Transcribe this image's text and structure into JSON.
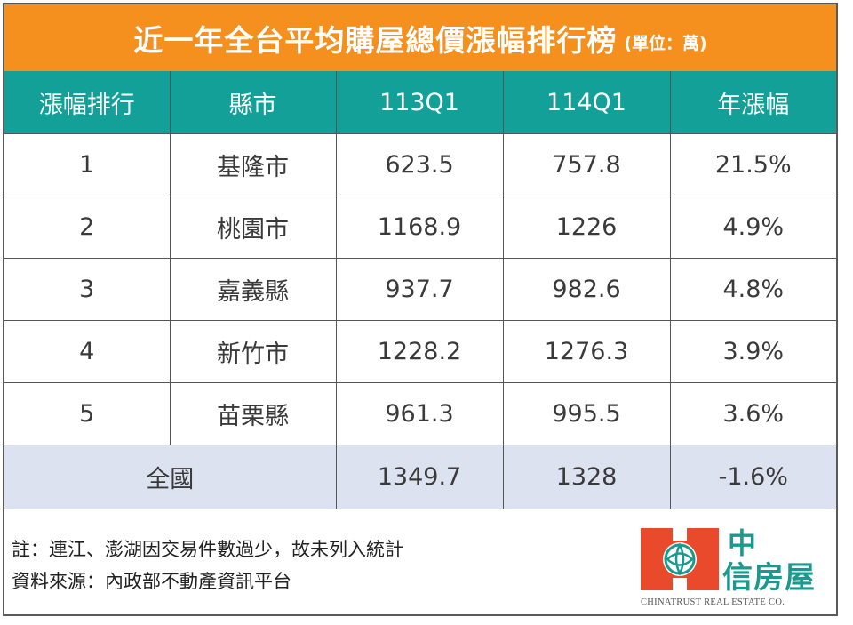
{
  "title": {
    "main": "近一年全台平均購屋總價漲幅排行榜",
    "unit": "(單位：萬)"
  },
  "table": {
    "headers": [
      "漲幅排行",
      "縣市",
      "113Q1",
      "114Q1",
      "年漲幅"
    ],
    "rows": [
      [
        "1",
        "基隆市",
        "623.5",
        "757.8",
        "21.5%"
      ],
      [
        "2",
        "桃園市",
        "1168.9",
        "1226",
        "4.9%"
      ],
      [
        "3",
        "嘉義縣",
        "937.7",
        "982.6",
        "4.8%"
      ],
      [
        "4",
        "新竹市",
        "1228.2",
        "1276.3",
        "3.9%"
      ],
      [
        "5",
        "苗栗縣",
        "961.3",
        "995.5",
        "3.6%"
      ]
    ],
    "total": {
      "label": "全國",
      "q1_113": "1349.7",
      "q1_114": "1328",
      "change": "-1.6%"
    }
  },
  "notes": {
    "note": "註：連江、澎湖因交易件數過少，故未列入統計",
    "source": "資料來源：內政部不動產資訊平台"
  },
  "logo": {
    "line1": "中",
    "line2": "信房屋",
    "english": "CHINATRUST REAL ESTATE CO."
  },
  "colors": {
    "title_bg": "#f5901f",
    "header_bg": "#12a098",
    "total_row_bg": "#dde2f1",
    "logo_red": "#e94a2b",
    "logo_teal": "#1a9a8f"
  }
}
